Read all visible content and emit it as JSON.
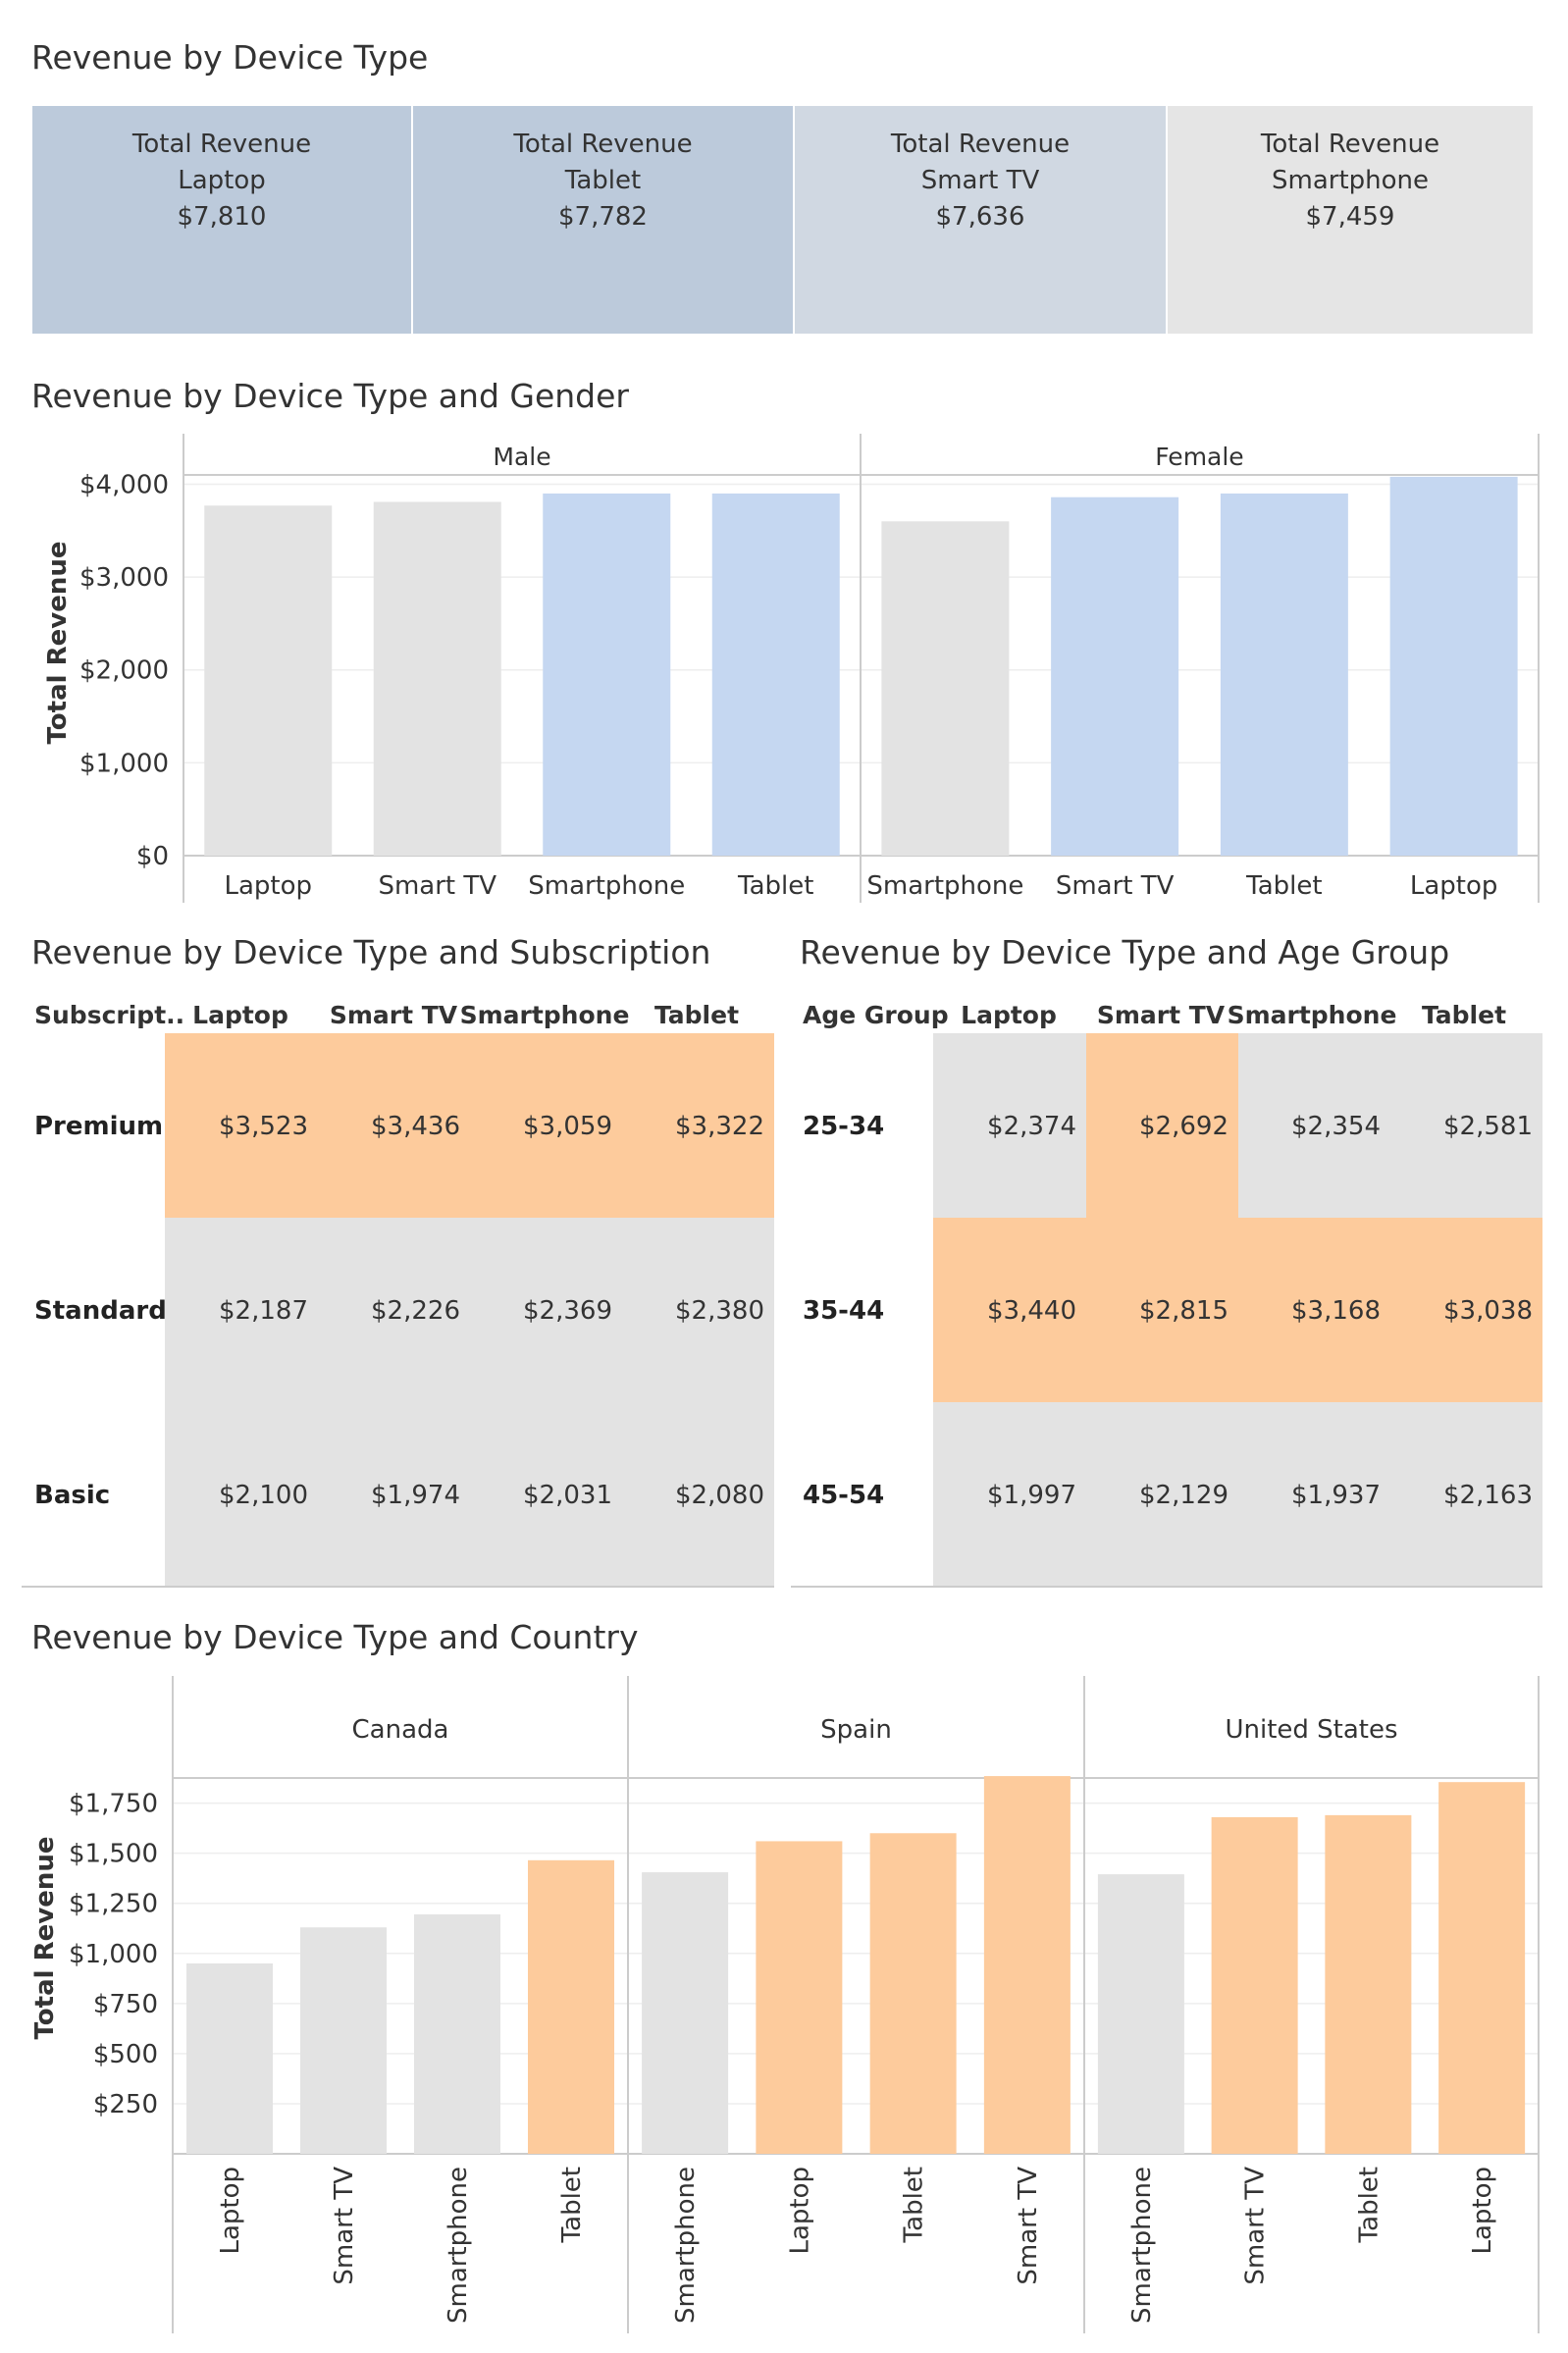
{
  "palette": {
    "grey": "#e3e3e3",
    "blue": "#c5d7f1",
    "orange": "#fdcb9c",
    "kpi": [
      "#bccadb",
      "#bccadb",
      "#d0d8e2",
      "#e5e5e5"
    ],
    "text": "#333333",
    "axis": "#cccccc",
    "grid": "#eeeeee"
  },
  "sections": {
    "device": "Revenue by Device Type",
    "gender": "Revenue by Device Type and Gender",
    "subscription": "Revenue by Device Type and Subscription",
    "age": "Revenue by Device Type and Age Group",
    "country": "Revenue by Device Type and Country"
  },
  "chart_data": [
    {
      "type": "table",
      "title": "Revenue by Device Type",
      "measure": "Total Revenue",
      "cards": [
        {
          "label": "Total Revenue",
          "device": "Laptop",
          "value": "$7,810"
        },
        {
          "label": "Total Revenue",
          "device": "Tablet",
          "value": "$7,782"
        },
        {
          "label": "Total Revenue",
          "device": "Smart TV",
          "value": "$7,636"
        },
        {
          "label": "Total Revenue",
          "device": "Smartphone",
          "value": "$7,459"
        }
      ]
    },
    {
      "type": "bar",
      "title": "Revenue by Device Type and Gender",
      "ylabel": "Total Revenue",
      "ylim": [
        0,
        4100
      ],
      "yticks": [
        0,
        1000,
        2000,
        3000,
        4000
      ],
      "ytick_labels": [
        "$0",
        "$1,000",
        "$2,000",
        "$3,000",
        "$4,000"
      ],
      "grid": true,
      "panels": [
        {
          "name": "Male",
          "categories": [
            "Laptop",
            "Smart TV",
            "Smartphone",
            "Tablet"
          ],
          "values": [
            3770,
            3810,
            3900,
            3900
          ],
          "highlight": [
            false,
            false,
            true,
            true
          ]
        },
        {
          "name": "Female",
          "categories": [
            "Smartphone",
            "Smart TV",
            "Tablet",
            "Laptop"
          ],
          "values": [
            3600,
            3860,
            3900,
            4080
          ],
          "highlight": [
            false,
            true,
            true,
            true
          ]
        }
      ]
    },
    {
      "type": "table",
      "title": "Revenue by Device Type and Subscription",
      "row_header": "Subscript..",
      "columns": [
        "Laptop",
        "Smart TV",
        "Smartphone",
        "Tablet"
      ],
      "rows": [
        {
          "label": "Premium",
          "values": [
            "$3,523",
            "$3,436",
            "$3,059",
            "$3,322"
          ],
          "highlight": [
            true,
            true,
            true,
            true
          ]
        },
        {
          "label": "Standard",
          "values": [
            "$2,187",
            "$2,226",
            "$2,369",
            "$2,380"
          ],
          "highlight": [
            false,
            false,
            false,
            false
          ]
        },
        {
          "label": "Basic",
          "values": [
            "$2,100",
            "$1,974",
            "$2,031",
            "$2,080"
          ],
          "highlight": [
            false,
            false,
            false,
            false
          ]
        }
      ]
    },
    {
      "type": "table",
      "title": "Revenue by Device Type and Age Group",
      "row_header": "Age Group",
      "columns": [
        "Laptop",
        "Smart TV",
        "Smartphone",
        "Tablet"
      ],
      "rows": [
        {
          "label": "25-34",
          "values": [
            "$2,374",
            "$2,692",
            "$2,354",
            "$2,581"
          ],
          "highlight": [
            false,
            true,
            false,
            false
          ]
        },
        {
          "label": "35-44",
          "values": [
            "$3,440",
            "$2,815",
            "$3,168",
            "$3,038"
          ],
          "highlight": [
            true,
            true,
            true,
            true
          ]
        },
        {
          "label": "45-54",
          "values": [
            "$1,997",
            "$2,129",
            "$1,937",
            "$2,163"
          ],
          "highlight": [
            false,
            false,
            false,
            false
          ]
        }
      ]
    },
    {
      "type": "bar",
      "title": "Revenue by Device Type and Country",
      "ylabel": "Total Revenue",
      "ylim": [
        0,
        1900
      ],
      "yticks": [
        250,
        500,
        750,
        1000,
        1250,
        1500,
        1750
      ],
      "ytick_labels": [
        "$250",
        "$500",
        "$750",
        "$1,000",
        "$1,250",
        "$1,500",
        "$1,750"
      ],
      "grid": true,
      "panels": [
        {
          "name": "Canada",
          "categories": [
            "Laptop",
            "Smart TV",
            "Smartphone",
            "Tablet"
          ],
          "values": [
            950,
            1130,
            1195,
            1465
          ],
          "highlight": [
            false,
            false,
            false,
            true
          ]
        },
        {
          "name": "Spain",
          "categories": [
            "Smartphone",
            "Laptop",
            "Tablet",
            "Smart TV"
          ],
          "values": [
            1405,
            1560,
            1600,
            1885
          ],
          "highlight": [
            false,
            true,
            true,
            true
          ]
        },
        {
          "name": "United States",
          "categories": [
            "Smartphone",
            "Smart TV",
            "Tablet",
            "Laptop"
          ],
          "values": [
            1395,
            1680,
            1690,
            1855
          ],
          "highlight": [
            false,
            true,
            true,
            true
          ]
        }
      ]
    }
  ]
}
